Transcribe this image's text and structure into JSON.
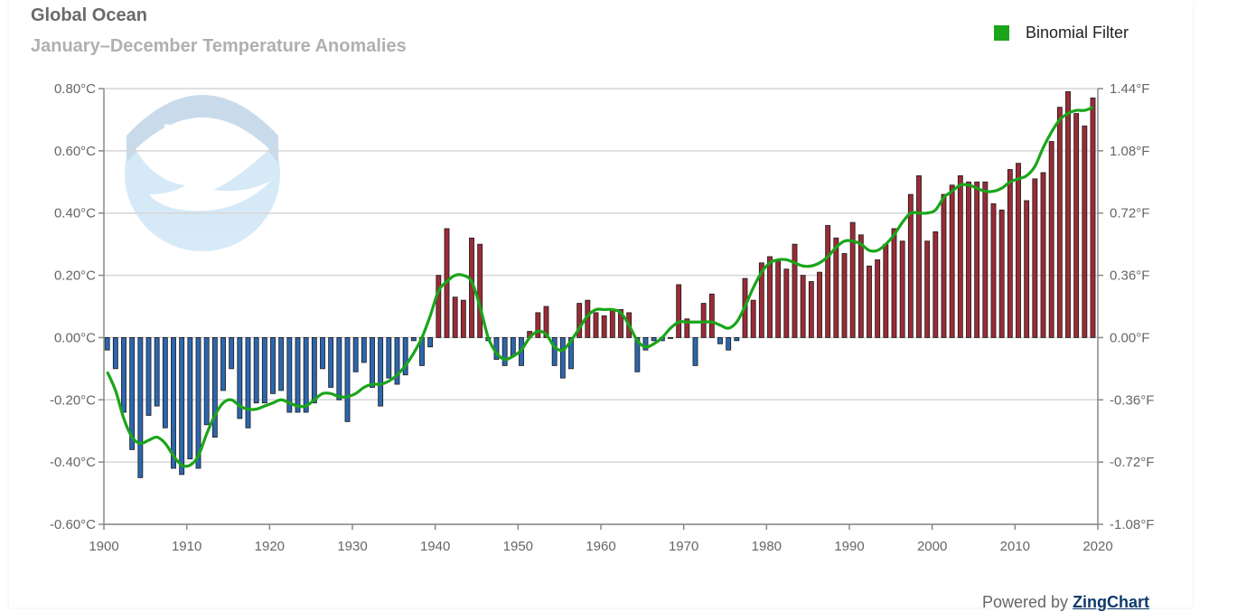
{
  "colors": {
    "positive_bar": "#9b2b36",
    "negative_bar": "#2c66ae",
    "bar_edge": "#1a1a1a",
    "filter_line": "#1aa51a",
    "grid": "#d6d6d6",
    "axis": "#888888"
  },
  "icons": {
    "logo": "noaa-logo"
  },
  "logo_text": "NOAA",
  "footer": {
    "prefix": "Powered by ",
    "brand": "ZingChart"
  },
  "chart_data": {
    "type": "bar",
    "title": "Global Ocean",
    "subtitle": "January–December Temperature Anomalies",
    "legend": {
      "position": "top-right",
      "entries": [
        "Binomial Filter"
      ]
    },
    "grid": true,
    "xlim": [
      1900,
      2020
    ],
    "ylim": [
      -0.6,
      0.8
    ],
    "x_ticks": [
      "1900",
      "1910",
      "1920",
      "1930",
      "1940",
      "1950",
      "1960",
      "1970",
      "1980",
      "1990",
      "2000",
      "2010",
      "2020"
    ],
    "y_ticks_left": [
      "0.80°C",
      "0.60°C",
      "0.40°C",
      "0.20°C",
      "0.00°C",
      "-0.20°C",
      "-0.40°C",
      "-0.60°C"
    ],
    "y_ticks_right": [
      "1.44°F",
      "1.08°F",
      "0.72°F",
      "0.36°F",
      "0.00°F",
      "-0.36°F",
      "-0.72°F",
      "-1.08°F"
    ],
    "years": [
      1900,
      1901,
      1902,
      1903,
      1904,
      1905,
      1906,
      1907,
      1908,
      1909,
      1910,
      1911,
      1912,
      1913,
      1914,
      1915,
      1916,
      1917,
      1918,
      1919,
      1920,
      1921,
      1922,
      1923,
      1924,
      1925,
      1926,
      1927,
      1928,
      1929,
      1930,
      1931,
      1932,
      1933,
      1934,
      1935,
      1936,
      1937,
      1938,
      1939,
      1940,
      1941,
      1942,
      1943,
      1944,
      1945,
      1946,
      1947,
      1948,
      1949,
      1950,
      1951,
      1952,
      1953,
      1954,
      1955,
      1956,
      1957,
      1958,
      1959,
      1960,
      1961,
      1962,
      1963,
      1964,
      1965,
      1966,
      1967,
      1968,
      1969,
      1970,
      1971,
      1972,
      1973,
      1974,
      1975,
      1976,
      1977,
      1978,
      1979,
      1980,
      1981,
      1982,
      1983,
      1984,
      1985,
      1986,
      1987,
      1988,
      1989,
      1990,
      1991,
      1992,
      1993,
      1994,
      1995,
      1996,
      1997,
      1998,
      1999,
      2000,
      2001,
      2002,
      2003,
      2004,
      2005,
      2006,
      2007,
      2008,
      2009,
      2010,
      2011,
      2012,
      2013,
      2014,
      2015,
      2016,
      2017,
      2018,
      2019
    ],
    "series": [
      {
        "type": "bar",
        "values": [
          -0.04,
          -0.1,
          -0.24,
          -0.36,
          -0.45,
          -0.25,
          -0.22,
          -0.29,
          -0.42,
          -0.44,
          -0.39,
          -0.42,
          -0.28,
          -0.32,
          -0.17,
          -0.1,
          -0.26,
          -0.29,
          -0.21,
          -0.21,
          -0.18,
          -0.17,
          -0.24,
          -0.24,
          -0.24,
          -0.21,
          -0.1,
          -0.16,
          -0.2,
          -0.27,
          -0.11,
          -0.08,
          -0.16,
          -0.22,
          -0.13,
          -0.15,
          -0.12,
          -0.01,
          -0.09,
          -0.03,
          0.2,
          0.35,
          0.13,
          0.12,
          0.32,
          0.3,
          -0.01,
          -0.07,
          -0.09,
          -0.06,
          -0.09,
          0.02,
          0.08,
          0.1,
          -0.09,
          -0.13,
          -0.1,
          0.11,
          0.12,
          0.08,
          0.07,
          0.09,
          0.09,
          0.08,
          -0.11,
          -0.04,
          -0.01,
          -0.01,
          0.0,
          0.17,
          0.06,
          -0.09,
          0.11,
          0.14,
          -0.02,
          -0.04,
          -0.01,
          0.19,
          0.12,
          0.24,
          0.26,
          0.25,
          0.22,
          0.3,
          0.2,
          0.18,
          0.21,
          0.36,
          0.32,
          0.27,
          0.37,
          0.33,
          0.23,
          0.25,
          0.3,
          0.35,
          0.31,
          0.46,
          0.52,
          0.31,
          0.34,
          0.46,
          0.49,
          0.52,
          0.5,
          0.5,
          0.5,
          0.43,
          0.41,
          0.54,
          0.56,
          0.44,
          0.51,
          0.53,
          0.63,
          0.74,
          0.79,
          0.72,
          0.68,
          0.77
        ]
      },
      {
        "name": "Binomial Filter",
        "type": "line",
        "values": [
          -0.11,
          -0.17,
          -0.26,
          -0.32,
          -0.34,
          -0.33,
          -0.32,
          -0.34,
          -0.38,
          -0.41,
          -0.41,
          -0.38,
          -0.31,
          -0.25,
          -0.21,
          -0.2,
          -0.22,
          -0.23,
          -0.23,
          -0.22,
          -0.21,
          -0.2,
          -0.21,
          -0.22,
          -0.22,
          -0.2,
          -0.18,
          -0.18,
          -0.19,
          -0.19,
          -0.18,
          -0.16,
          -0.15,
          -0.15,
          -0.14,
          -0.12,
          -0.09,
          -0.05,
          0.0,
          0.07,
          0.15,
          0.18,
          0.2,
          0.2,
          0.18,
          0.1,
          0.0,
          -0.05,
          -0.07,
          -0.06,
          -0.04,
          0.0,
          0.02,
          0.01,
          -0.03,
          -0.04,
          -0.01,
          0.03,
          0.07,
          0.09,
          0.09,
          0.09,
          0.08,
          0.04,
          -0.01,
          -0.03,
          -0.02,
          0.0,
          0.03,
          0.05,
          0.05,
          0.05,
          0.05,
          0.05,
          0.04,
          0.03,
          0.05,
          0.1,
          0.16,
          0.21,
          0.24,
          0.25,
          0.25,
          0.24,
          0.23,
          0.23,
          0.24,
          0.26,
          0.29,
          0.31,
          0.31,
          0.3,
          0.28,
          0.28,
          0.3,
          0.33,
          0.37,
          0.4,
          0.4,
          0.4,
          0.41,
          0.45,
          0.47,
          0.49,
          0.49,
          0.48,
          0.47,
          0.47,
          0.48,
          0.5,
          0.51,
          0.52,
          0.55,
          0.61,
          0.66,
          0.7,
          0.72,
          0.73,
          0.73,
          0.74
        ]
      }
    ]
  }
}
